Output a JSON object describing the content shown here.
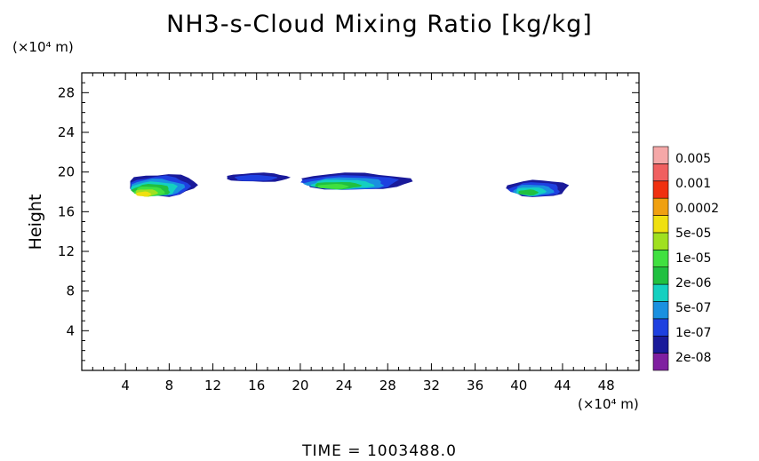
{
  "chart_data": {
    "type": "heatmap",
    "title": "NH3-s-Cloud Mixing Ratio [kg/kg]",
    "ylabel": "Height",
    "x_unit": "(×10⁴ m)",
    "y_unit": "(×10⁴ m)",
    "xlim": [
      0,
      51
    ],
    "ylim": [
      0,
      30
    ],
    "x_ticks": [
      4,
      8,
      12,
      16,
      20,
      24,
      28,
      32,
      36,
      40,
      44,
      48
    ],
    "y_ticks": [
      4,
      8,
      12,
      16,
      20,
      24,
      28
    ],
    "colorbar": {
      "colors": [
        "#7f1fa0",
        "#1a1a9a",
        "#1e40e0",
        "#1a90e0",
        "#14d0c0",
        "#20c040",
        "#40e040",
        "#a0e020",
        "#f0e010",
        "#f0a010",
        "#f03010",
        "#f06060",
        "#f5a8a8"
      ],
      "labels": [
        "2e-08",
        "1e-07",
        "5e-07",
        "2e-06",
        "1e-05",
        "5e-05",
        "0.0002",
        "0.001",
        "0.005"
      ]
    },
    "clouds": [
      {
        "x_start": 4.3,
        "x_end": 10.5,
        "y_bottom": 17.6,
        "y_top": 19.8,
        "peak_level": 8
      },
      {
        "x_start": 13.2,
        "x_end": 19.0,
        "y_bottom": 19.0,
        "y_top": 19.9,
        "peak_level": 2
      },
      {
        "x_start": 20.0,
        "x_end": 30.0,
        "y_bottom": 18.2,
        "y_top": 19.9,
        "peak_level": 6
      },
      {
        "x_start": 39.0,
        "x_end": 44.5,
        "y_bottom": 17.5,
        "y_top": 19.2,
        "peak_level": 5
      }
    ]
  },
  "time_label": "TIME  =  1003488.0"
}
